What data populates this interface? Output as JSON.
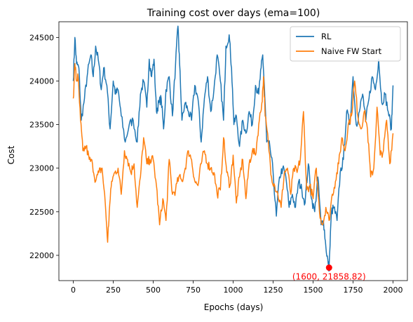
{
  "chart_data": {
    "type": "line",
    "title": "Training cost over days (ema=100)",
    "xlabel": "Epochs (days)",
    "ylabel": "Cost",
    "xlim": [
      -90,
      2090
    ],
    "ylim": [
      21710,
      24680
    ],
    "xticks": [
      0,
      250,
      500,
      750,
      1000,
      1250,
      1500,
      1750,
      2000
    ],
    "yticks": [
      22000,
      22500,
      23000,
      23500,
      24000,
      24500
    ],
    "grid": false,
    "legend_position": "top-right",
    "annotation": {
      "x": 1600,
      "y": 21858.82,
      "text": "(1600, 21858.82)",
      "color": "#ff0000"
    },
    "series": [
      {
        "name": "RL",
        "color": "#1f77b4",
        "x": [
          0,
          10,
          20,
          35,
          50,
          70,
          90,
          110,
          125,
          140,
          160,
          175,
          190,
          210,
          230,
          250,
          265,
          280,
          300,
          325,
          350,
          375,
          400,
          420,
          440,
          460,
          475,
          490,
          505,
          520,
          535,
          550,
          565,
          580,
          600,
          620,
          640,
          655,
          665,
          680,
          700,
          720,
          740,
          760,
          780,
          800,
          820,
          840,
          860,
          880,
          900,
          920,
          940,
          955,
          975,
          990,
          1005,
          1020,
          1040,
          1060,
          1080,
          1100,
          1120,
          1140,
          1160,
          1175,
          1185,
          1195,
          1210,
          1230,
          1250,
          1270,
          1290,
          1310,
          1330,
          1350,
          1370,
          1390,
          1410,
          1430,
          1450,
          1470,
          1490,
          1510,
          1530,
          1550,
          1565,
          1580,
          1595,
          1600,
          1615,
          1630,
          1650,
          1670,
          1690,
          1710,
          1730,
          1750,
          1770,
          1790,
          1810,
          1830,
          1850,
          1870,
          1890,
          1910,
          1930,
          1950,
          1970,
          1990,
          2000
        ],
        "y": [
          24000,
          24500,
          24200,
          24150,
          23550,
          23800,
          24100,
          24300,
          24050,
          24400,
          24200,
          23900,
          24150,
          23950,
          23450,
          24000,
          23850,
          23900,
          23600,
          23300,
          23500,
          23550,
          23300,
          23850,
          24000,
          23700,
          24250,
          24050,
          24250,
          23650,
          23750,
          23800,
          23450,
          23900,
          24050,
          23600,
          24200,
          24630,
          24200,
          23550,
          23750,
          23650,
          23550,
          23950,
          23800,
          23300,
          23800,
          24050,
          23650,
          23900,
          24300,
          24000,
          23550,
          24400,
          24530,
          24150,
          23500,
          23600,
          23250,
          23550,
          23400,
          23650,
          23500,
          23950,
          23850,
          24150,
          24300,
          23950,
          23300,
          23250,
          22950,
          22450,
          22900,
          23000,
          22900,
          22550,
          22700,
          22550,
          22850,
          22750,
          22600,
          23050,
          22650,
          22500,
          22900,
          22350,
          22400,
          22100,
          21900,
          21858.82,
          22500,
          22550,
          22400,
          22950,
          23100,
          23650,
          23500,
          24050,
          23500,
          23650,
          23850,
          23550,
          23800,
          24050,
          23900,
          24250,
          23750,
          23850,
          23650,
          23450,
          23950
        ]
      },
      {
        "name": "Naive FW Start",
        "color": "#ff7f0e",
        "x": [
          0,
          10,
          20,
          30,
          45,
          60,
          80,
          100,
          120,
          140,
          160,
          180,
          200,
          215,
          225,
          240,
          260,
          280,
          300,
          320,
          340,
          360,
          380,
          400,
          420,
          440,
          460,
          480,
          500,
          520,
          540,
          560,
          580,
          600,
          620,
          640,
          660,
          680,
          700,
          720,
          740,
          760,
          780,
          800,
          820,
          840,
          860,
          880,
          900,
          920,
          940,
          960,
          980,
          1000,
          1020,
          1040,
          1060,
          1080,
          1100,
          1120,
          1140,
          1160,
          1180,
          1190,
          1200,
          1220,
          1240,
          1260,
          1280,
          1300,
          1320,
          1340,
          1360,
          1380,
          1400,
          1420,
          1440,
          1460,
          1480,
          1500,
          1520,
          1540,
          1560,
          1580,
          1600,
          1620,
          1640,
          1660,
          1680,
          1700,
          1720,
          1740,
          1760,
          1780,
          1800,
          1820,
          1840,
          1860,
          1880,
          1900,
          1920,
          1940,
          1960,
          1980,
          2000
        ],
        "y": [
          23800,
          24200,
          24000,
          24050,
          23550,
          23200,
          23250,
          23100,
          23050,
          22850,
          22950,
          23000,
          22600,
          22150,
          22500,
          22850,
          22950,
          23000,
          22700,
          23200,
          23100,
          22950,
          23050,
          22550,
          22900,
          23350,
          23050,
          23100,
          23100,
          22800,
          22350,
          22650,
          22400,
          23100,
          22700,
          22750,
          22900,
          22850,
          23000,
          23200,
          23100,
          22850,
          22800,
          23050,
          23200,
          23050,
          23000,
          22950,
          22700,
          22750,
          23350,
          22950,
          22800,
          23150,
          22600,
          22900,
          23100,
          22650,
          23050,
          23200,
          23150,
          23500,
          23750,
          24050,
          23600,
          23300,
          22900,
          22800,
          22700,
          22550,
          22950,
          23000,
          22700,
          23000,
          22950,
          23100,
          23650,
          22750,
          22800,
          22650,
          23000,
          22500,
          22350,
          22550,
          22400,
          22700,
          22850,
          23050,
          23350,
          23200,
          23500,
          23600,
          24000,
          23600,
          23450,
          23650,
          23450,
          22900,
          23000,
          23700,
          23150,
          23200,
          23550,
          23050,
          23400
        ]
      }
    ]
  }
}
